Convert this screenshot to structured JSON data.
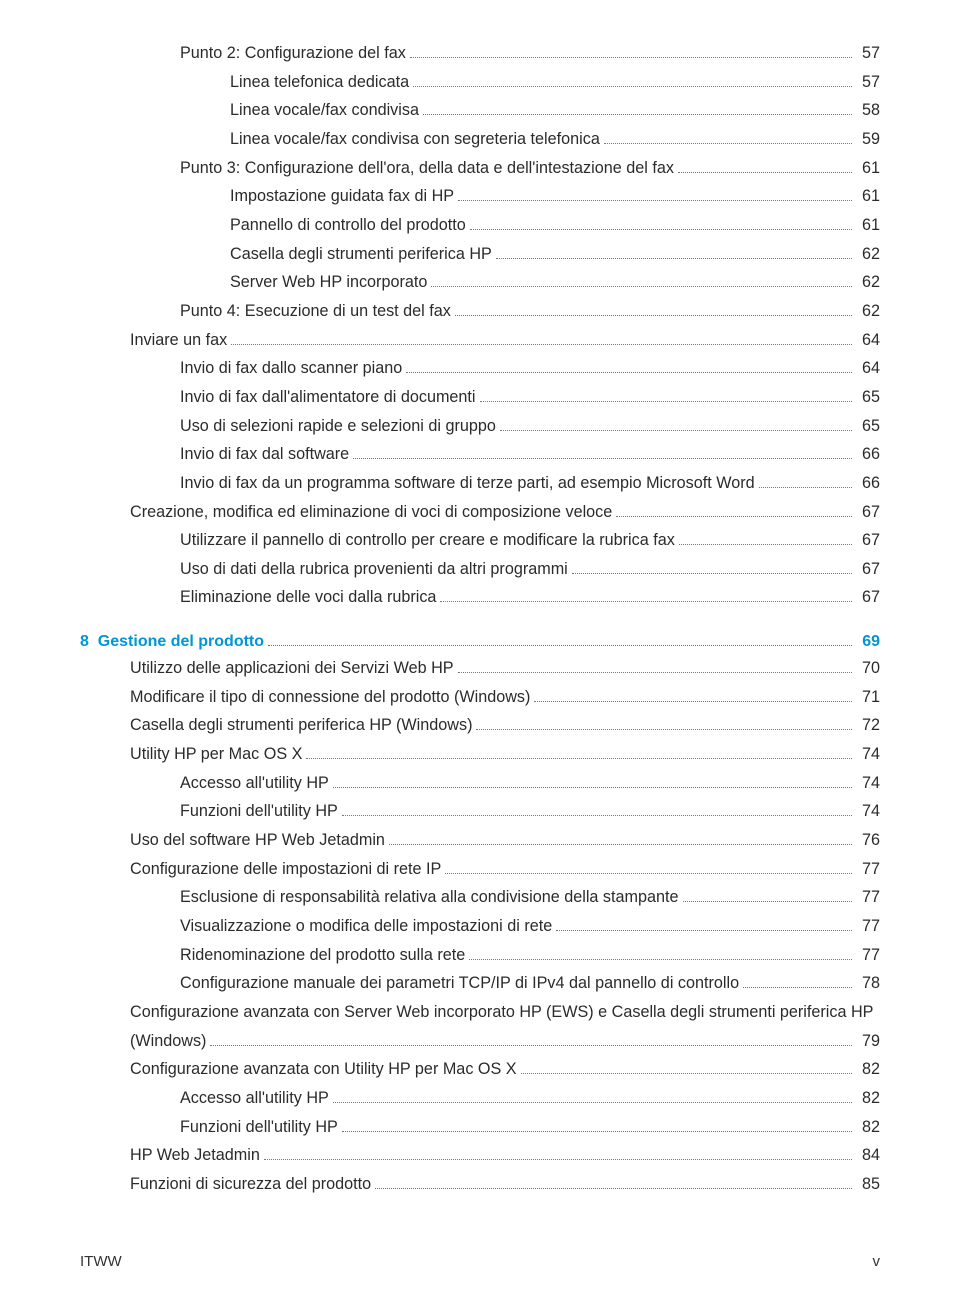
{
  "footer": {
    "left": "ITWW",
    "right": "v"
  },
  "chapter8": {
    "num": "8",
    "title": "Gestione del prodotto",
    "page": "69"
  },
  "rows": [
    {
      "lvl": 2,
      "label": "Punto 2: Configurazione del fax",
      "page": "57"
    },
    {
      "lvl": 3,
      "label": "Linea telefonica dedicata",
      "page": "57"
    },
    {
      "lvl": 3,
      "label": "Linea vocale/fax condivisa",
      "page": "58"
    },
    {
      "lvl": 3,
      "label": "Linea vocale/fax condivisa con segreteria telefonica",
      "page": "59"
    },
    {
      "lvl": 2,
      "label": "Punto 3: Configurazione dell'ora, della data e dell'intestazione del fax",
      "page": "61"
    },
    {
      "lvl": 3,
      "label": "Impostazione guidata fax di HP",
      "page": "61"
    },
    {
      "lvl": 3,
      "label": "Pannello di controllo del prodotto",
      "page": "61"
    },
    {
      "lvl": 3,
      "label": "Casella degli strumenti periferica HP",
      "page": "62"
    },
    {
      "lvl": 3,
      "label": "Server Web HP incorporato",
      "page": "62"
    },
    {
      "lvl": 2,
      "label": "Punto 4: Esecuzione di un test del fax",
      "page": "62"
    },
    {
      "lvl": 1,
      "label": "Inviare un fax",
      "page": "64"
    },
    {
      "lvl": 2,
      "label": "Invio di fax dallo scanner piano",
      "page": "64"
    },
    {
      "lvl": 2,
      "label": "Invio di fax dall'alimentatore di documenti",
      "page": "65"
    },
    {
      "lvl": 2,
      "label": "Uso di selezioni rapide e selezioni di gruppo",
      "page": "65"
    },
    {
      "lvl": 2,
      "label": "Invio di fax dal software",
      "page": "66"
    },
    {
      "lvl": 2,
      "label": "Invio di fax da un programma software di terze parti, ad esempio Microsoft Word",
      "page": "66"
    },
    {
      "lvl": 1,
      "label": "Creazione, modifica ed eliminazione di voci di composizione veloce",
      "page": "67"
    },
    {
      "lvl": 2,
      "label": "Utilizzare il pannello di controllo per creare e modificare la rubrica fax",
      "page": "67"
    },
    {
      "lvl": 2,
      "label": "Uso di dati della rubrica provenienti da altri programmi",
      "page": "67"
    },
    {
      "lvl": 2,
      "label": "Eliminazione delle voci dalla rubrica",
      "page": "67"
    }
  ],
  "rows8": [
    {
      "lvl": 1,
      "label": "Utilizzo delle applicazioni dei Servizi Web HP",
      "page": "70"
    },
    {
      "lvl": 1,
      "label": "Modificare il tipo di connessione del prodotto (Windows)",
      "page": "71"
    },
    {
      "lvl": 1,
      "label": "Casella degli strumenti periferica HP (Windows)",
      "page": "72"
    },
    {
      "lvl": 1,
      "label": "Utility HP per Mac OS X",
      "page": "74"
    },
    {
      "lvl": 2,
      "label": "Accesso all'utility HP",
      "page": "74"
    },
    {
      "lvl": 2,
      "label": "Funzioni dell'utility HP",
      "page": "74"
    },
    {
      "lvl": 1,
      "label": "Uso del software HP Web Jetadmin",
      "page": "76"
    },
    {
      "lvl": 1,
      "label": "Configurazione delle impostazioni di rete IP",
      "page": "77"
    },
    {
      "lvl": 2,
      "label": "Esclusione di responsabilità relativa alla condivisione della stampante",
      "page": "77"
    },
    {
      "lvl": 2,
      "label": "Visualizzazione o modifica delle impostazioni di rete",
      "page": "77"
    },
    {
      "lvl": 2,
      "label": "Ridenominazione del prodotto sulla rete",
      "page": "77"
    },
    {
      "lvl": 2,
      "label": "Configurazione manuale dei parametri TCP/IP di IPv4 dal pannello di controllo",
      "page": "78"
    },
    {
      "lvl": 1,
      "label": "Configurazione avanzata con Server Web incorporato HP (EWS) e Casella degli strumenti periferica HP (Windows)",
      "page": "79",
      "wrap": true
    },
    {
      "lvl": 1,
      "label": "Configurazione avanzata con Utility HP per Mac OS X",
      "page": "82"
    },
    {
      "lvl": 2,
      "label": "Accesso all'utility HP",
      "page": "82"
    },
    {
      "lvl": 2,
      "label": "Funzioni dell'utility HP",
      "page": "82"
    },
    {
      "lvl": 1,
      "label": "HP Web Jetadmin",
      "page": "84"
    },
    {
      "lvl": 1,
      "label": "Funzioni di sicurezza del prodotto",
      "page": "85"
    }
  ]
}
